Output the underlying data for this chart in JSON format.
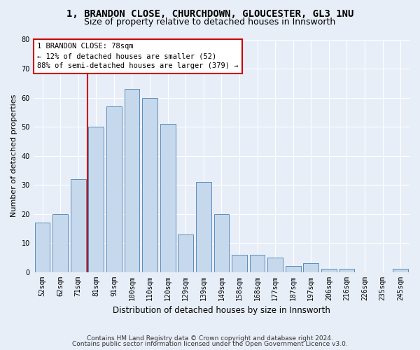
{
  "title1": "1, BRANDON CLOSE, CHURCHDOWN, GLOUCESTER, GL3 1NU",
  "title2": "Size of property relative to detached houses in Innsworth",
  "xlabel": "Distribution of detached houses by size in Innsworth",
  "ylabel": "Number of detached properties",
  "categories": [
    "52sqm",
    "62sqm",
    "71sqm",
    "81sqm",
    "91sqm",
    "100sqm",
    "110sqm",
    "120sqm",
    "129sqm",
    "139sqm",
    "149sqm",
    "158sqm",
    "168sqm",
    "177sqm",
    "187sqm",
    "197sqm",
    "206sqm",
    "216sqm",
    "226sqm",
    "235sqm",
    "245sqm"
  ],
  "values": [
    17,
    20,
    32,
    50,
    57,
    63,
    60,
    51,
    13,
    31,
    20,
    6,
    6,
    5,
    2,
    3,
    1,
    1,
    0,
    0,
    1
  ],
  "bar_color": "#c6d9ec",
  "bar_edge_color": "#5b8db8",
  "vline_color": "#cc0000",
  "vline_x_index": 2.5,
  "annotation_line1": "1 BRANDON CLOSE: 78sqm",
  "annotation_line2": "← 12% of detached houses are smaller (52)",
  "annotation_line3": "88% of semi-detached houses are larger (379) →",
  "annotation_box_color": "white",
  "annotation_box_edge": "#cc0000",
  "ylim": [
    0,
    80
  ],
  "yticks": [
    0,
    10,
    20,
    30,
    40,
    50,
    60,
    70,
    80
  ],
  "bg_color": "#e8eef8",
  "plot_bg_color": "#e8eef8",
  "grid_color": "white",
  "footnote1": "Contains HM Land Registry data © Crown copyright and database right 2024.",
  "footnote2": "Contains public sector information licensed under the Open Government Licence v3.0.",
  "title1_fontsize": 10,
  "title2_fontsize": 9,
  "xlabel_fontsize": 8.5,
  "ylabel_fontsize": 8,
  "tick_fontsize": 7,
  "annotation_fontsize": 7.5,
  "footnote_fontsize": 6.5
}
